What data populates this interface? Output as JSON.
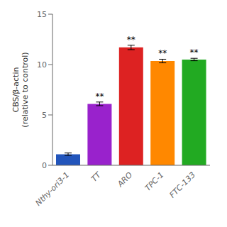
{
  "chart_data": {
    "type": "bar",
    "ylabel": "CBS/β-actin\n(relative to control)",
    "categories": [
      "Nthy-ori3-1",
      "TT",
      "ARO",
      "TPC-1",
      "FTC-133"
    ],
    "values": [
      1.1,
      6.1,
      11.7,
      10.35,
      10.5
    ],
    "errors": [
      0.12,
      0.18,
      0.22,
      0.18,
      0.12
    ],
    "annotations": [
      null,
      "**",
      "**",
      "**",
      "**"
    ],
    "colors": [
      "#2255bb",
      "#9922cc",
      "#dd2222",
      "#ff8800",
      "#22aa22"
    ],
    "ylim": [
      0,
      15
    ],
    "yticks": [
      0,
      5,
      10,
      15
    ],
    "grid": false
  }
}
